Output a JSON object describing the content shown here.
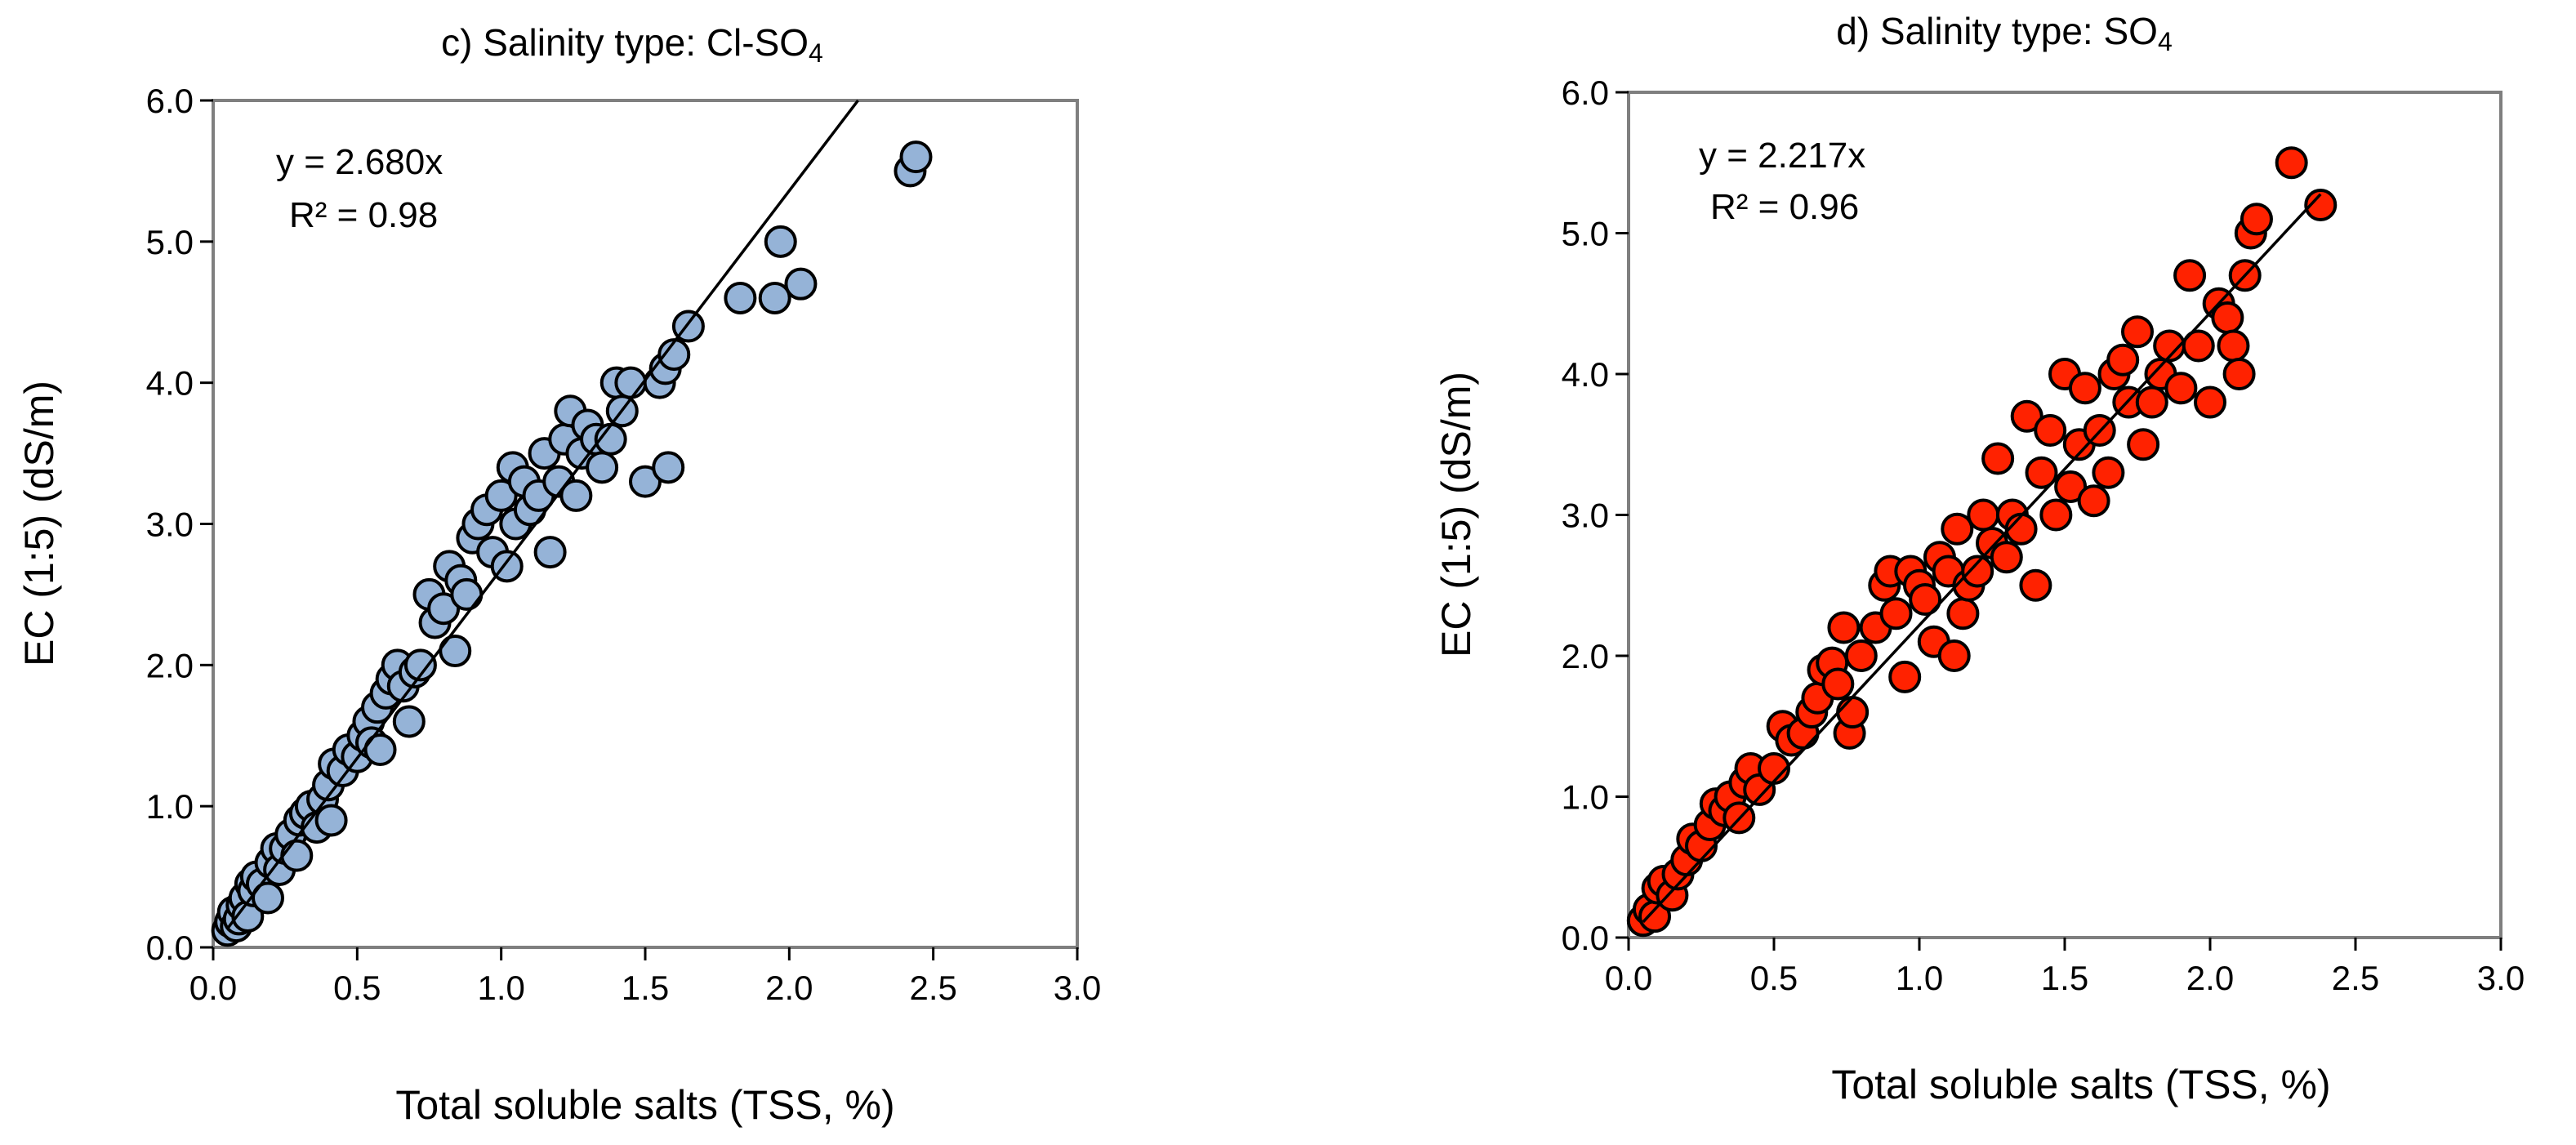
{
  "figure": {
    "background": "#ffffff",
    "frame_color": "#7f7f7f"
  },
  "chart_data": [
    {
      "id": "c",
      "type": "scatter",
      "title": "c) Salinity type: Cl-SO",
      "title_subscript": "4",
      "xlabel": "Total soluble salts (TSS, %)",
      "ylabel": "EC (1:5) (dS/m)",
      "xlim": [
        0,
        3.0
      ],
      "ylim": [
        0,
        6.0
      ],
      "xticks": [
        "0.0",
        "0.5",
        "1.0",
        "1.5",
        "2.0",
        "2.5",
        "3.0"
      ],
      "yticks": [
        "0.0",
        "1.0",
        "2.0",
        "3.0",
        "4.0",
        "5.0",
        "6.0"
      ],
      "grid": false,
      "marker_color": "#95b3d7",
      "marker_edge": "#000000",
      "equation": "y = 2.680x",
      "r_squared": "R² = 0.98",
      "trendline": {
        "slope": 2.68,
        "intercept": 0,
        "x_range": [
          0.05,
          2.24
        ]
      },
      "points": [
        [
          0.05,
          0.12
        ],
        [
          0.06,
          0.18
        ],
        [
          0.07,
          0.25
        ],
        [
          0.08,
          0.15
        ],
        [
          0.09,
          0.2
        ],
        [
          0.1,
          0.3
        ],
        [
          0.11,
          0.35
        ],
        [
          0.12,
          0.22
        ],
        [
          0.13,
          0.45
        ],
        [
          0.14,
          0.4
        ],
        [
          0.15,
          0.5
        ],
        [
          0.17,
          0.45
        ],
        [
          0.19,
          0.35
        ],
        [
          0.2,
          0.6
        ],
        [
          0.22,
          0.7
        ],
        [
          0.23,
          0.55
        ],
        [
          0.25,
          0.7
        ],
        [
          0.27,
          0.8
        ],
        [
          0.29,
          0.65
        ],
        [
          0.3,
          0.9
        ],
        [
          0.32,
          0.95
        ],
        [
          0.34,
          1.0
        ],
        [
          0.36,
          0.85
        ],
        [
          0.38,
          1.05
        ],
        [
          0.4,
          1.15
        ],
        [
          0.41,
          0.9
        ],
        [
          0.42,
          1.3
        ],
        [
          0.45,
          1.25
        ],
        [
          0.47,
          1.4
        ],
        [
          0.5,
          1.35
        ],
        [
          0.52,
          1.5
        ],
        [
          0.54,
          1.6
        ],
        [
          0.55,
          1.45
        ],
        [
          0.57,
          1.7
        ],
        [
          0.58,
          1.4
        ],
        [
          0.6,
          1.8
        ],
        [
          0.62,
          1.9
        ],
        [
          0.64,
          2.0
        ],
        [
          0.66,
          1.85
        ],
        [
          0.68,
          1.6
        ],
        [
          0.7,
          1.95
        ],
        [
          0.72,
          2.0
        ],
        [
          0.75,
          2.5
        ],
        [
          0.77,
          2.3
        ],
        [
          0.8,
          2.4
        ],
        [
          0.82,
          2.7
        ],
        [
          0.84,
          2.1
        ],
        [
          0.86,
          2.6
        ],
        [
          0.88,
          2.5
        ],
        [
          0.9,
          2.9
        ],
        [
          0.92,
          3.0
        ],
        [
          0.95,
          3.1
        ],
        [
          0.97,
          2.8
        ],
        [
          1.0,
          3.2
        ],
        [
          1.02,
          2.7
        ],
        [
          1.04,
          3.4
        ],
        [
          1.05,
          3.0
        ],
        [
          1.08,
          3.3
        ],
        [
          1.1,
          3.1
        ],
        [
          1.13,
          3.2
        ],
        [
          1.15,
          3.5
        ],
        [
          1.17,
          2.8
        ],
        [
          1.2,
          3.3
        ],
        [
          1.22,
          3.6
        ],
        [
          1.24,
          3.8
        ],
        [
          1.26,
          3.2
        ],
        [
          1.28,
          3.5
        ],
        [
          1.3,
          3.7
        ],
        [
          1.33,
          3.6
        ],
        [
          1.35,
          3.4
        ],
        [
          1.38,
          3.6
        ],
        [
          1.4,
          4.0
        ],
        [
          1.42,
          3.8
        ],
        [
          1.45,
          4.0
        ],
        [
          1.5,
          3.3
        ],
        [
          1.55,
          4.0
        ],
        [
          1.57,
          4.1
        ],
        [
          1.58,
          3.4
        ],
        [
          1.6,
          4.2
        ],
        [
          1.65,
          4.4
        ],
        [
          1.83,
          4.6
        ],
        [
          1.95,
          4.6
        ],
        [
          1.97,
          5.0
        ],
        [
          2.04,
          4.7
        ],
        [
          2.42,
          5.5
        ],
        [
          2.44,
          5.6
        ]
      ]
    },
    {
      "id": "d",
      "type": "scatter",
      "title": "d) Salinity type: SO",
      "title_subscript": "4",
      "xlabel": "Total soluble salts (TSS, %)",
      "ylabel": "EC (1:5) (dS/m)",
      "xlim": [
        0,
        3.0
      ],
      "ylim": [
        0,
        6.0
      ],
      "xticks": [
        "0.0",
        "0.5",
        "1.0",
        "1.5",
        "2.0",
        "2.5",
        "3.0"
      ],
      "yticks": [
        "0.0",
        "1.0",
        "2.0",
        "3.0",
        "4.0",
        "5.0",
        "6.0"
      ],
      "grid": false,
      "marker_color": "#ff2200",
      "marker_edge": "#000000",
      "equation": "y = 2.217x",
      "r_squared": "R² = 0.96",
      "trendline": {
        "slope": 2.217,
        "intercept": 0,
        "x_range": [
          0.05,
          2.38
        ]
      },
      "points": [
        [
          0.05,
          0.12
        ],
        [
          0.07,
          0.2
        ],
        [
          0.09,
          0.15
        ],
        [
          0.1,
          0.35
        ],
        [
          0.12,
          0.4
        ],
        [
          0.15,
          0.3
        ],
        [
          0.17,
          0.45
        ],
        [
          0.2,
          0.55
        ],
        [
          0.22,
          0.7
        ],
        [
          0.25,
          0.65
        ],
        [
          0.28,
          0.8
        ],
        [
          0.3,
          0.95
        ],
        [
          0.33,
          0.9
        ],
        [
          0.35,
          1.0
        ],
        [
          0.38,
          0.85
        ],
        [
          0.4,
          1.1
        ],
        [
          0.42,
          1.2
        ],
        [
          0.45,
          1.05
        ],
        [
          0.5,
          1.2
        ],
        [
          0.53,
          1.5
        ],
        [
          0.56,
          1.4
        ],
        [
          0.6,
          1.45
        ],
        [
          0.63,
          1.6
        ],
        [
          0.65,
          1.7
        ],
        [
          0.67,
          1.9
        ],
        [
          0.7,
          1.95
        ],
        [
          0.72,
          1.8
        ],
        [
          0.74,
          2.2
        ],
        [
          0.76,
          1.45
        ],
        [
          0.77,
          1.6
        ],
        [
          0.8,
          2.0
        ],
        [
          0.85,
          2.2
        ],
        [
          0.88,
          2.5
        ],
        [
          0.9,
          2.6
        ],
        [
          0.92,
          2.3
        ],
        [
          0.95,
          1.85
        ],
        [
          0.97,
          2.6
        ],
        [
          1.0,
          2.5
        ],
        [
          1.02,
          2.4
        ],
        [
          1.05,
          2.1
        ],
        [
          1.07,
          2.7
        ],
        [
          1.1,
          2.6
        ],
        [
          1.12,
          2.0
        ],
        [
          1.13,
          2.9
        ],
        [
          1.15,
          2.3
        ],
        [
          1.17,
          2.5
        ],
        [
          1.2,
          2.6
        ],
        [
          1.22,
          3.0
        ],
        [
          1.25,
          2.8
        ],
        [
          1.27,
          3.4
        ],
        [
          1.3,
          2.7
        ],
        [
          1.32,
          3.0
        ],
        [
          1.35,
          2.9
        ],
        [
          1.37,
          3.7
        ],
        [
          1.4,
          2.5
        ],
        [
          1.42,
          3.3
        ],
        [
          1.45,
          3.6
        ],
        [
          1.47,
          3.0
        ],
        [
          1.5,
          4.0
        ],
        [
          1.52,
          3.2
        ],
        [
          1.55,
          3.5
        ],
        [
          1.57,
          3.9
        ],
        [
          1.6,
          3.1
        ],
        [
          1.62,
          3.6
        ],
        [
          1.65,
          3.3
        ],
        [
          1.67,
          4.0
        ],
        [
          1.7,
          4.1
        ],
        [
          1.72,
          3.8
        ],
        [
          1.75,
          4.3
        ],
        [
          1.77,
          3.5
        ],
        [
          1.8,
          3.8
        ],
        [
          1.83,
          4.0
        ],
        [
          1.86,
          4.2
        ],
        [
          1.9,
          3.9
        ],
        [
          1.93,
          4.7
        ],
        [
          1.96,
          4.2
        ],
        [
          2.0,
          3.8
        ],
        [
          2.03,
          4.5
        ],
        [
          2.06,
          4.4
        ],
        [
          2.08,
          4.2
        ],
        [
          2.1,
          4.0
        ],
        [
          2.12,
          4.7
        ],
        [
          2.14,
          5.0
        ],
        [
          2.16,
          5.1
        ],
        [
          2.28,
          5.5
        ],
        [
          2.38,
          5.2
        ]
      ]
    }
  ]
}
